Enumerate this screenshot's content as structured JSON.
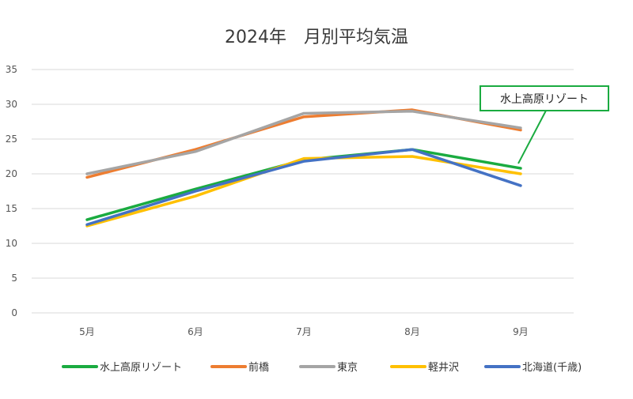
{
  "chart_data": {
    "type": "line",
    "title": "2024年　月別平均気温",
    "categories": [
      "5月",
      "6月",
      "7月",
      "8月",
      "9月"
    ],
    "ylim": [
      0,
      35
    ],
    "yticks": [
      0,
      5,
      10,
      15,
      20,
      25,
      30,
      35
    ],
    "grid": true,
    "legend_position": "bottom",
    "series": [
      {
        "name": "水上高原リゾート",
        "color": "#1aab40",
        "values": [
          13.4,
          17.8,
          22.0,
          23.5,
          20.8
        ]
      },
      {
        "name": "前橋",
        "color": "#ed7d31",
        "values": [
          19.5,
          23.5,
          28.2,
          29.2,
          26.3
        ]
      },
      {
        "name": "東京",
        "color": "#a5a5a5",
        "values": [
          20.0,
          23.2,
          28.7,
          29.0,
          26.6
        ]
      },
      {
        "name": "軽井沢",
        "color": "#ffc000",
        "values": [
          12.5,
          16.8,
          22.2,
          22.5,
          20.0
        ]
      },
      {
        "name": "北海道(千歳)",
        "color": "#4472c4",
        "values": [
          12.7,
          17.5,
          21.8,
          23.5,
          18.3
        ]
      }
    ],
    "annotation": {
      "text": "水上高原リゾート",
      "border_color": "#1aab40"
    }
  }
}
